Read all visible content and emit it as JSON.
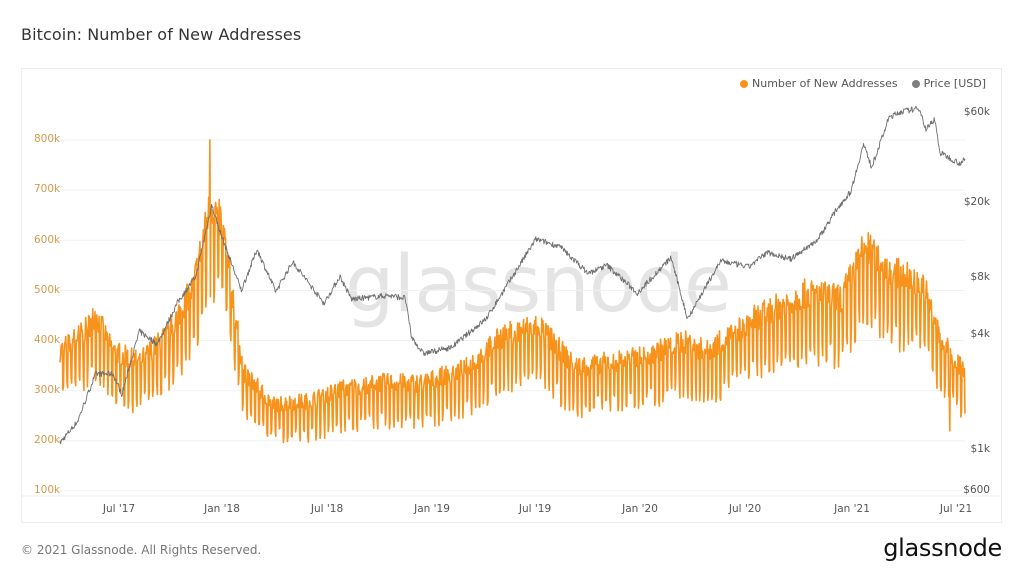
{
  "title": "Bitcoin: Number of New Addresses",
  "legend": [
    {
      "label": "Number of New Addresses",
      "color": "#f7931a"
    },
    {
      "label": "Price [USD]",
      "color": "#7f7f7f"
    }
  ],
  "watermark": "glassnode",
  "footer": "© 2021 Glassnode. All Rights Reserved.",
  "logo": "glassnode",
  "chart_data": {
    "type": "line",
    "title": "Bitcoin: Number of New Addresses",
    "xlabel": "",
    "ylabel_left": "Number of New Addresses",
    "ylabel_right": "Price [USD]",
    "x_ticks": [
      "Jul '17",
      "Jan '18",
      "Jul '18",
      "Jan '19",
      "Jul '19",
      "Jan '20",
      "Jul '20",
      "Jan '21",
      "Jul '21"
    ],
    "y_left_ticks": [
      "100k",
      "200k",
      "300k",
      "400k",
      "500k",
      "600k",
      "700k",
      "800k"
    ],
    "y_right_ticks": [
      "$600",
      "$1k",
      "$4k",
      "$8k",
      "$20k",
      "$60k"
    ],
    "y_left_range": [
      100000,
      800000
    ],
    "y_right_scale": "log",
    "y_right_range": [
      600,
      60000
    ],
    "grid": true,
    "legend_position": "top-right",
    "series": [
      {
        "name": "Number of New Addresses",
        "color": "#f7931a",
        "axis": "left",
        "trend_points": [
          [
            "2017-04-01",
            360000
          ],
          [
            "2017-05-15",
            400000
          ],
          [
            "2017-06-01",
            430000
          ],
          [
            "2017-07-01",
            360000
          ],
          [
            "2017-08-15",
            340000
          ],
          [
            "2017-10-01",
            390000
          ],
          [
            "2017-11-15",
            480000
          ],
          [
            "2017-12-15",
            640000
          ],
          [
            "2018-01-05",
            600000
          ],
          [
            "2018-02-10",
            320000
          ],
          [
            "2018-04-01",
            260000
          ],
          [
            "2018-06-01",
            265000
          ],
          [
            "2018-08-01",
            290000
          ],
          [
            "2018-10-01",
            300000
          ],
          [
            "2018-12-15",
            300000
          ],
          [
            "2019-03-01",
            330000
          ],
          [
            "2019-05-01",
            390000
          ],
          [
            "2019-07-01",
            410000
          ],
          [
            "2019-09-01",
            330000
          ],
          [
            "2019-11-01",
            340000
          ],
          [
            "2020-01-01",
            350000
          ],
          [
            "2020-03-01",
            380000
          ],
          [
            "2020-04-15",
            360000
          ],
          [
            "2020-07-01",
            420000
          ],
          [
            "2020-10-01",
            470000
          ],
          [
            "2020-12-01",
            460000
          ],
          [
            "2021-01-10",
            560000
          ],
          [
            "2021-03-01",
            510000
          ],
          [
            "2021-04-20",
            490000
          ],
          [
            "2021-05-20",
            380000
          ],
          [
            "2021-07-01",
            320000
          ]
        ],
        "peak": {
          "date": "2017-12-14",
          "value": 800000
        },
        "low": {
          "date": "2021-06-05",
          "value": 220000
        },
        "weekly_amplitude": 60000
      },
      {
        "name": "Price [USD]",
        "color": "#7f7f7f",
        "axis": "right",
        "points": [
          [
            "2017-04-01",
            1080
          ],
          [
            "2017-05-01",
            1400
          ],
          [
            "2017-06-01",
            2500
          ],
          [
            "2017-07-01",
            2500
          ],
          [
            "2017-07-16",
            1950
          ],
          [
            "2017-08-15",
            4200
          ],
          [
            "2017-09-15",
            3600
          ],
          [
            "2017-10-20",
            6000
          ],
          [
            "2017-11-20",
            8200
          ],
          [
            "2017-12-17",
            19500
          ],
          [
            "2018-01-01",
            14000
          ],
          [
            "2018-02-06",
            6900
          ],
          [
            "2018-03-05",
            11400
          ],
          [
            "2018-04-06",
            6800
          ],
          [
            "2018-05-05",
            9800
          ],
          [
            "2018-06-28",
            5900
          ],
          [
            "2018-07-25",
            8200
          ],
          [
            "2018-08-14",
            6200
          ],
          [
            "2018-10-15",
            6500
          ],
          [
            "2018-11-14",
            6300
          ],
          [
            "2018-11-25",
            3900
          ],
          [
            "2018-12-15",
            3200
          ],
          [
            "2019-02-01",
            3450
          ],
          [
            "2019-04-02",
            4900
          ],
          [
            "2019-05-15",
            8000
          ],
          [
            "2019-06-26",
            12900
          ],
          [
            "2019-08-06",
            11800
          ],
          [
            "2019-09-24",
            8500
          ],
          [
            "2019-10-26",
            9400
          ],
          [
            "2019-12-17",
            6700
          ],
          [
            "2020-02-13",
            10300
          ],
          [
            "2020-03-12",
            4900
          ],
          [
            "2020-05-08",
            9900
          ],
          [
            "2020-06-25",
            9200
          ],
          [
            "2020-07-27",
            11000
          ],
          [
            "2020-09-05",
            10100
          ],
          [
            "2020-10-21",
            12800
          ],
          [
            "2020-11-25",
            19000
          ],
          [
            "2020-12-17",
            23000
          ],
          [
            "2021-01-08",
            41000
          ],
          [
            "2021-01-22",
            31000
          ],
          [
            "2021-02-21",
            57000
          ],
          [
            "2021-03-13",
            61000
          ],
          [
            "2021-04-14",
            63500
          ],
          [
            "2021-04-25",
            49000
          ],
          [
            "2021-05-10",
            56000
          ],
          [
            "2021-05-19",
            37000
          ],
          [
            "2021-06-22",
            32500
          ],
          [
            "2021-07-01",
            34000
          ]
        ]
      }
    ]
  }
}
